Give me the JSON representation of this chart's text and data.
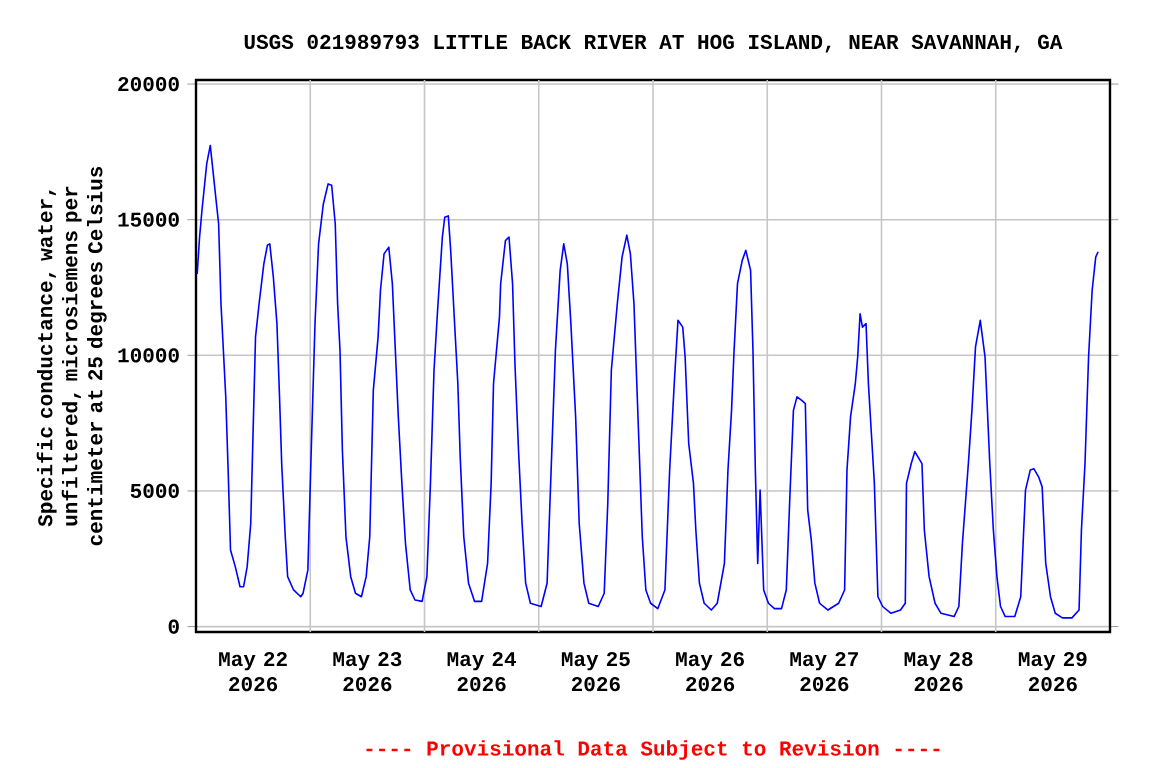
{
  "chart_data": {
    "type": "line",
    "title": "USGS 021989793 LITTLE BACK RIVER AT HOG ISLAND, NEAR SAVANNAH, GA",
    "ylabel": "Specific conductance, water, unfiltered, microsiemens per centimeter at 25 degrees Celsius",
    "annotations": [
      "---- Provisional Data Subject to Revision ----"
    ],
    "color": "#0000ff",
    "grid": true,
    "xlim": [
      "2026-05-22T00:00",
      "2026-05-30T00:00"
    ],
    "ylim": [
      -200,
      20150
    ],
    "yticks": [
      0,
      5000,
      10000,
      15000,
      20000
    ],
    "xticks": [
      {
        "value": "2026-05-22T12:00",
        "label": "May 22 2026"
      },
      {
        "value": "2026-05-23T00:00",
        "label": null
      },
      {
        "value": "2026-05-23T12:00",
        "label": "May 23 2026"
      },
      {
        "value": "2026-05-24T00:00",
        "label": null
      },
      {
        "value": "2026-05-24T12:00",
        "label": "May 24 2026"
      },
      {
        "value": "2026-05-25T00:00",
        "label": null
      },
      {
        "value": "2026-05-25T12:00",
        "label": "May 25 2026"
      },
      {
        "value": "2026-05-26T00:00",
        "label": null
      },
      {
        "value": "2026-05-26T12:00",
        "label": "May 26 2026"
      },
      {
        "value": "2026-05-27T00:00",
        "label": null
      },
      {
        "value": "2026-05-27T12:00",
        "label": "May 27 2026"
      },
      {
        "value": "2026-05-28T00:00",
        "label": null
      },
      {
        "value": "2026-05-28T12:00",
        "label": "May 28 2026"
      },
      {
        "value": "2026-05-29T00:00",
        "label": null
      },
      {
        "value": "2026-05-29T12:00",
        "label": "May 29 2026"
      }
    ],
    "x": [
      "2026-05-22T00:15",
      "2026-05-22T00:45",
      "2026-05-22T01:15",
      "2026-05-22T02:15",
      "2026-05-22T03:00",
      "2026-05-22T04:00",
      "2026-05-22T04:45",
      "2026-05-22T05:15",
      "2026-05-22T06:15",
      "2026-05-22T06:45",
      "2026-05-22T07:15",
      "2026-05-22T08:15",
      "2026-05-22T09:15",
      "2026-05-22T10:00",
      "2026-05-22T10:45",
      "2026-05-22T11:30",
      "2026-05-22T12:00",
      "2026-05-22T12:30",
      "2026-05-22T13:15",
      "2026-05-22T14:15",
      "2026-05-22T15:00",
      "2026-05-22T15:30",
      "2026-05-22T16:15",
      "2026-05-22T17:00",
      "2026-05-22T17:30",
      "2026-05-22T18:00",
      "2026-05-22T18:45",
      "2026-05-22T19:15",
      "2026-05-22T20:30",
      "2026-05-22T22:00",
      "2026-05-22T22:30",
      "2026-05-22T23:30",
      "2026-05-23T00:15",
      "2026-05-23T01:00",
      "2026-05-23T01:45",
      "2026-05-23T02:45",
      "2026-05-23T03:45",
      "2026-05-23T04:30",
      "2026-05-23T05:15",
      "2026-05-23T05:45",
      "2026-05-23T06:15",
      "2026-05-23T06:45",
      "2026-05-23T07:30",
      "2026-05-23T08:30",
      "2026-05-23T09:30",
      "2026-05-23T10:45",
      "2026-05-23T11:45",
      "2026-05-23T12:30",
      "2026-05-23T13:15",
      "2026-05-23T14:15",
      "2026-05-23T14:45",
      "2026-05-23T15:30",
      "2026-05-23T16:30",
      "2026-05-23T17:15",
      "2026-05-23T17:45",
      "2026-05-23T18:30",
      "2026-05-23T19:15",
      "2026-05-23T20:00",
      "2026-05-23T21:00",
      "2026-05-23T22:00",
      "2026-05-23T23:30",
      "2026-05-24T00:30",
      "2026-05-24T01:15",
      "2026-05-24T02:00",
      "2026-05-24T02:45",
      "2026-05-24T03:45",
      "2026-05-24T04:15",
      "2026-05-24T05:00",
      "2026-05-24T05:30",
      "2026-05-24T06:15",
      "2026-05-24T07:00",
      "2026-05-24T07:30",
      "2026-05-24T08:15",
      "2026-05-24T09:15",
      "2026-05-24T10:30",
      "2026-05-24T12:00",
      "2026-05-24T13:15",
      "2026-05-24T14:00",
      "2026-05-24T14:30",
      "2026-05-24T15:45",
      "2026-05-24T16:00",
      "2026-05-24T17:00",
      "2026-05-24T17:45",
      "2026-05-24T18:30",
      "2026-05-24T19:00",
      "2026-05-24T19:45",
      "2026-05-24T20:30",
      "2026-05-24T21:15",
      "2026-05-24T22:15",
      "2026-05-25T00:30",
      "2026-05-25T01:45",
      "2026-05-25T02:30",
      "2026-05-25T03:30",
      "2026-05-25T04:30",
      "2026-05-25T05:15",
      "2026-05-25T06:00",
      "2026-05-25T06:45",
      "2026-05-25T07:45",
      "2026-05-25T08:30",
      "2026-05-25T09:30",
      "2026-05-25T10:30",
      "2026-05-25T12:30",
      "2026-05-25T13:45",
      "2026-05-25T14:30",
      "2026-05-25T15:15",
      "2026-05-25T16:30",
      "2026-05-25T17:30",
      "2026-05-25T18:30",
      "2026-05-25T19:15",
      "2026-05-25T20:00",
      "2026-05-25T21:00",
      "2026-05-25T21:45",
      "2026-05-25T22:30",
      "2026-05-25T23:30",
      "2026-05-26T01:00",
      "2026-05-26T02:30",
      "2026-05-26T03:30",
      "2026-05-26T04:30",
      "2026-05-26T05:15",
      "2026-05-26T06:15",
      "2026-05-26T06:45",
      "2026-05-26T07:30",
      "2026-05-26T08:30",
      "2026-05-26T09:00",
      "2026-05-26T09:45",
      "2026-05-26T10:45",
      "2026-05-26T12:15",
      "2026-05-26T13:30",
      "2026-05-26T15:00",
      "2026-05-26T15:45",
      "2026-05-26T16:30",
      "2026-05-26T17:00",
      "2026-05-26T17:45",
      "2026-05-26T18:45",
      "2026-05-26T19:30",
      "2026-05-26T20:30",
      "2026-05-26T21:00",
      "2026-05-26T21:30",
      "2026-05-26T22:00",
      "2026-05-26T22:30",
      "2026-05-26T23:15",
      "2026-05-27T00:15",
      "2026-05-27T01:30",
      "2026-05-27T03:00",
      "2026-05-27T04:00",
      "2026-05-27T04:45",
      "2026-05-27T05:30",
      "2026-05-27T06:15",
      "2026-05-27T07:15",
      "2026-05-27T08:00",
      "2026-05-27T08:30",
      "2026-05-27T09:15",
      "2026-05-27T10:00",
      "2026-05-27T11:00",
      "2026-05-27T12:45",
      "2026-05-27T15:00",
      "2026-05-27T16:15",
      "2026-05-27T16:45",
      "2026-05-27T17:30",
      "2026-05-27T18:30",
      "2026-05-27T19:00",
      "2026-05-27T19:30",
      "2026-05-27T20:00",
      "2026-05-27T20:45",
      "2026-05-27T21:15",
      "2026-05-27T22:00",
      "2026-05-27T22:30",
      "2026-05-27T23:15",
      "2026-05-28T00:15",
      "2026-05-28T02:00",
      "2026-05-28T04:00",
      "2026-05-28T05:00",
      "2026-05-28T05:15",
      "2026-05-28T06:15",
      "2026-05-28T07:00",
      "2026-05-28T08:30",
      "2026-05-28T09:00",
      "2026-05-28T10:00",
      "2026-05-28T11:15",
      "2026-05-28T12:30",
      "2026-05-28T15:15",
      "2026-05-28T16:15",
      "2026-05-28T17:00",
      "2026-05-28T18:15",
      "2026-05-28T19:00",
      "2026-05-28T19:45",
      "2026-05-28T20:45",
      "2026-05-28T21:45",
      "2026-05-28T22:45",
      "2026-05-28T23:30",
      "2026-05-29T00:15",
      "2026-05-29T01:00",
      "2026-05-29T02:00",
      "2026-05-29T04:00",
      "2026-05-29T05:15",
      "2026-05-29T06:15",
      "2026-05-29T07:15",
      "2026-05-29T08:00",
      "2026-05-29T09:00",
      "2026-05-29T09:45",
      "2026-05-29T10:30",
      "2026-05-29T11:30",
      "2026-05-29T12:30",
      "2026-05-29T14:00",
      "2026-05-29T16:00",
      "2026-05-29T17:30",
      "2026-05-29T18:00",
      "2026-05-29T18:45",
      "2026-05-29T19:30",
      "2026-05-29T20:15",
      "2026-05-29T21:00",
      "2026-05-29T21:30"
    ],
    "values": [
      13000,
      14360,
      15340,
      17060,
      17740,
      16070,
      14850,
      11900,
      8470,
      5770,
      2820,
      2210,
      1470,
      1470,
      2210,
      3800,
      7240,
      10670,
      11900,
      13370,
      14060,
      14110,
      12880,
      11170,
      8710,
      6010,
      3310,
      1840,
      1350,
      1100,
      1230,
      2090,
      6750,
      11170,
      14110,
      15580,
      16320,
      16270,
      14850,
      11900,
      10180,
      6500,
      3310,
      1840,
      1230,
      1100,
      1840,
      3310,
      8710,
      10670,
      12390,
      13740,
      13990,
      12640,
      10670,
      7730,
      5280,
      3070,
      1350,
      980,
      930,
      1840,
      5280,
      9450,
      11660,
      14360,
      15090,
      15140,
      13870,
      11410,
      8960,
      6260,
      3310,
      1600,
      930,
      930,
      2330,
      5280,
      8960,
      11410,
      12640,
      14230,
      14360,
      12640,
      9690,
      6500,
      3800,
      1600,
      860,
      740,
      1600,
      5280,
      10180,
      13130,
      14110,
      13370,
      11170,
      7730,
      3800,
      1600,
      860,
      740,
      1230,
      4540,
      9450,
      11900,
      13620,
      14430,
      13740,
      11900,
      6990,
      3310,
      1350,
      860,
      660,
      1350,
      5770,
      9080,
      11290,
      11040,
      9940,
      6750,
      5280,
      3560,
      1600,
      860,
      610,
      860,
      2330,
      5770,
      7970,
      10060,
      12640,
      13500,
      13870,
      13130,
      10180,
      5770,
      2330,
      5030,
      1350,
      860,
      660,
      660,
      1350,
      4780,
      7970,
      8470,
      8340,
      8220,
      4290,
      3190,
      1600,
      860,
      610,
      860,
      1350,
      5770,
      7730,
      8960,
      9940,
      11530,
      11040,
      11170,
      8960,
      6750,
      5280,
      1100,
      740,
      490,
      610,
      860,
      5280,
      6010,
      6450,
      6010,
      3560,
      1840,
      860,
      490,
      370,
      740,
      3070,
      6010,
      7970,
      10310,
      11290,
      9940,
      6010,
      3560,
      1840,
      740,
      370,
      370,
      1100,
      5030,
      5770,
      5820,
      5520,
      5150,
      2330,
      1100,
      490,
      320,
      320,
      610,
      3560,
      6010,
      9940,
      12390,
      13620,
      13820
    ]
  }
}
